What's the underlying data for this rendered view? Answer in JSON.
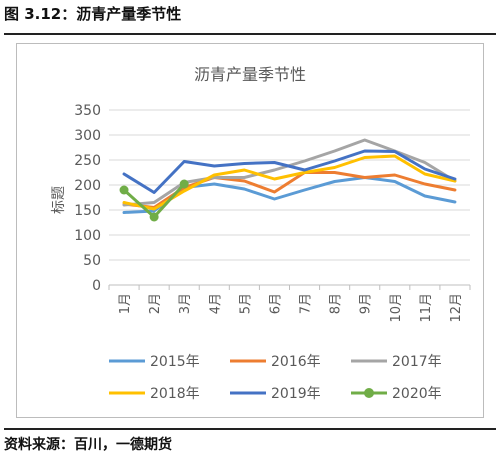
{
  "figure_title": "图 3.12：沥青产量季节性",
  "source_note": "资料来源：百川，一德期货",
  "chart_data": {
    "type": "line",
    "title": "沥青产量季节性",
    "ylabel": "标题",
    "xlabel": "",
    "categories": [
      "1月",
      "2月",
      "3月",
      "4月",
      "5月",
      "6月",
      "7月",
      "8月",
      "9月",
      "10月",
      "11月",
      "12月"
    ],
    "ylim": [
      0,
      350
    ],
    "yticks": [
      0,
      50,
      100,
      150,
      200,
      250,
      300,
      350
    ],
    "grid": true,
    "legend_position": "bottom",
    "series": [
      {
        "name": "2015年",
        "color": "#5b9bd5",
        "marker": false,
        "values": [
          145,
          148,
          195,
          202,
          192,
          172,
          190,
          207,
          215,
          207,
          178,
          166
        ]
      },
      {
        "name": "2016年",
        "color": "#ed7d31",
        "marker": false,
        "values": [
          162,
          155,
          195,
          215,
          208,
          186,
          225,
          225,
          215,
          220,
          202,
          190
        ]
      },
      {
        "name": "2017年",
        "color": "#a5a5a5",
        "marker": false,
        "values": [
          160,
          165,
          205,
          215,
          215,
          230,
          248,
          268,
          290,
          268,
          245,
          208
        ]
      },
      {
        "name": "2018年",
        "color": "#ffc000",
        "marker": false,
        "values": [
          165,
          152,
          188,
          220,
          230,
          212,
          225,
          235,
          255,
          258,
          222,
          208
        ]
      },
      {
        "name": "2019年",
        "color": "#4472c4",
        "marker": false,
        "values": [
          222,
          185,
          247,
          238,
          243,
          245,
          230,
          248,
          268,
          267,
          232,
          212
        ]
      },
      {
        "name": "2020年",
        "color": "#70ad47",
        "marker": true,
        "values": [
          190,
          136,
          202,
          null,
          null,
          null,
          null,
          null,
          null,
          null,
          null,
          null
        ]
      }
    ]
  }
}
